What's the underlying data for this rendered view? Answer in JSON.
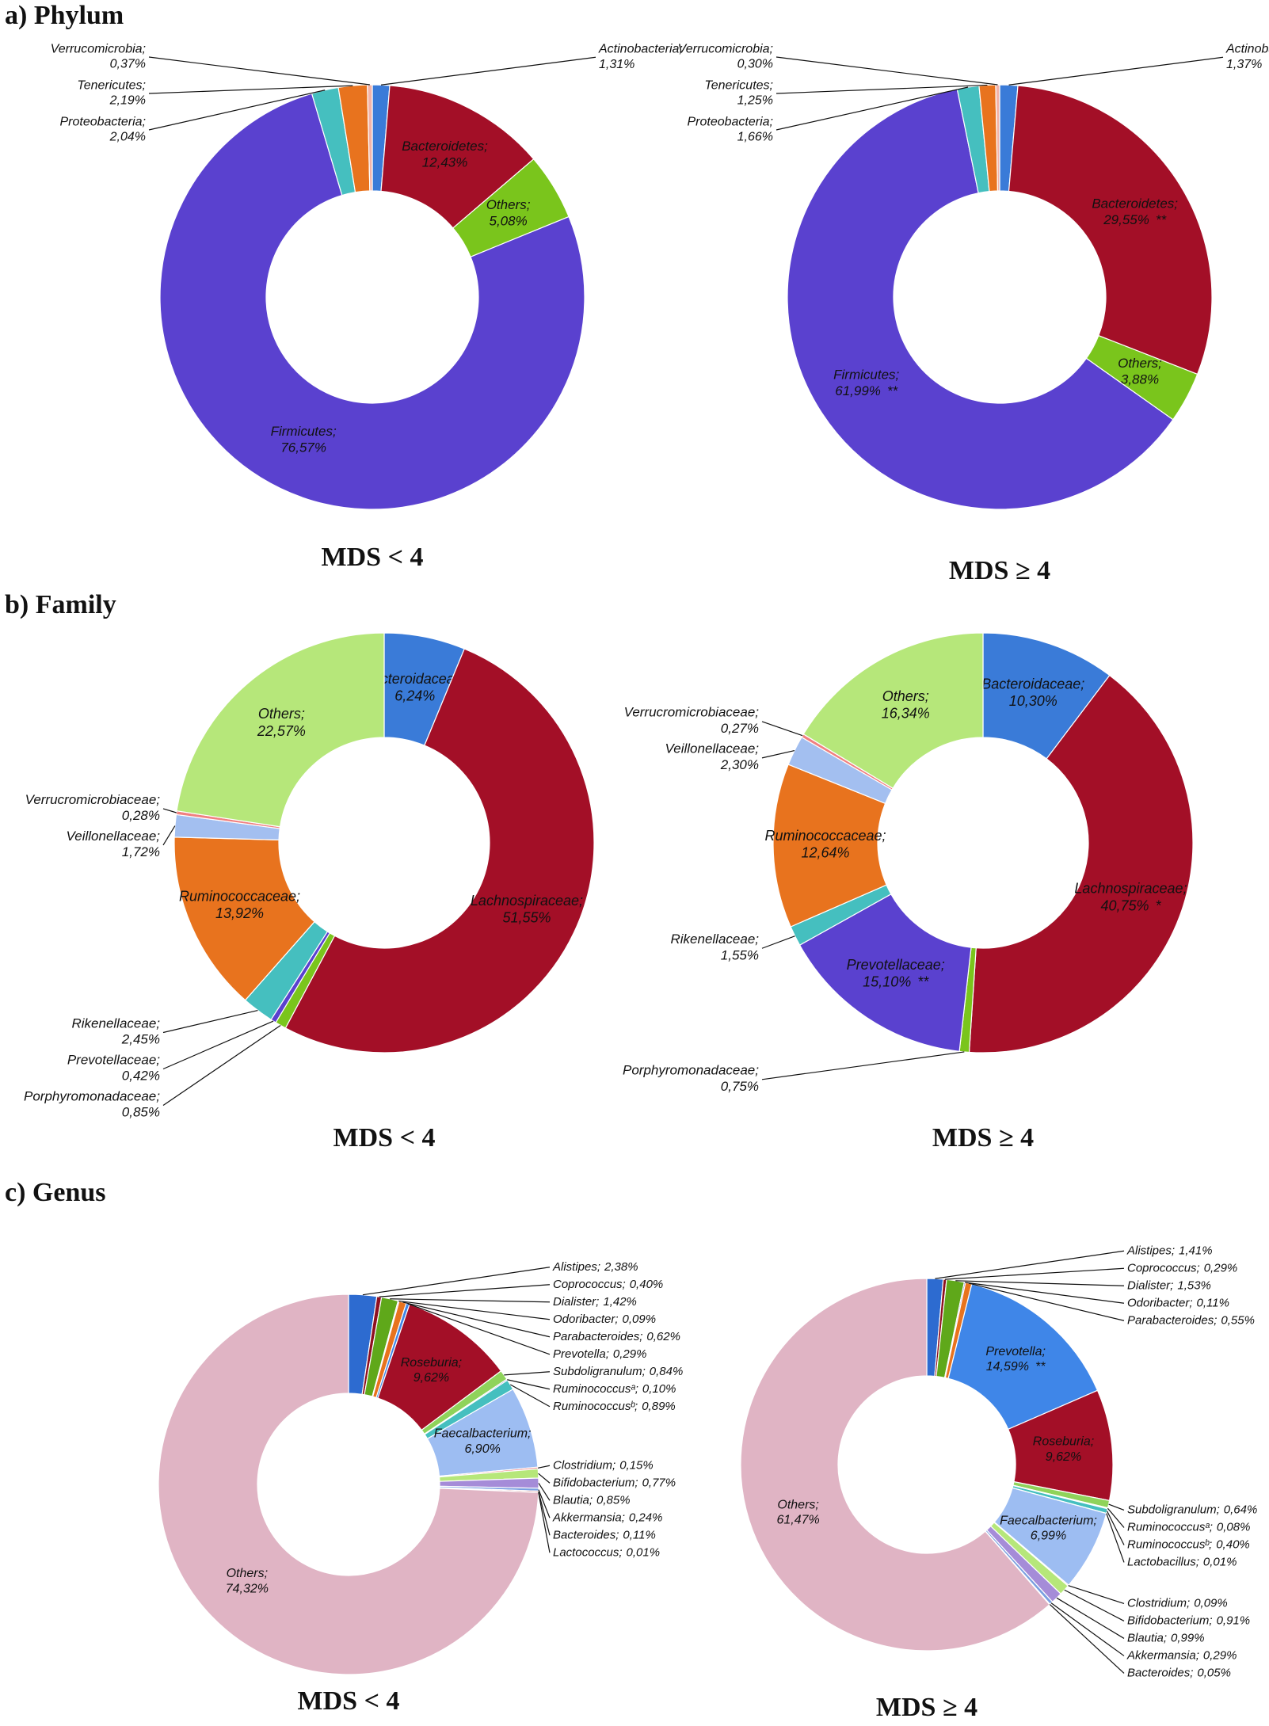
{
  "sections": [
    "a) Phylum",
    "b) Family",
    "c) Genus"
  ],
  "chart_data": [
    {
      "type": "pie",
      "subtitle": "MDS < 4",
      "categories": [
        "Actinobacteria;",
        "Bacteroidetes;",
        "Others;",
        "Firmicutes;",
        "Proteobacteria;",
        "Tenericutes;",
        "Verrucomicrobia;"
      ],
      "values": [
        1.31,
        12.43,
        5.08,
        76.57,
        2.04,
        2.19,
        0.37
      ],
      "value_labels": [
        "1,31%",
        "12,43%",
        "5,08%",
        "76,57%",
        "2,04%",
        "2,19%",
        "0,37%"
      ],
      "colors": [
        "#3a7bd8",
        "#a30f27",
        "#7ac51c",
        "#5a41cf",
        "#45bfbf",
        "#e8731e",
        "#f3b3a8"
      ]
    },
    {
      "type": "pie",
      "subtitle": "MDS ≥ 4",
      "categories": [
        "Actinobacteria;",
        "Bacteroidetes;",
        "Others;",
        "Firmicutes;",
        "Proteobacteria;",
        "Tenericutes;",
        "Verrucomicrobia;"
      ],
      "values": [
        1.37,
        29.55,
        3.88,
        61.99,
        1.66,
        1.25,
        0.3
      ],
      "value_labels": [
        "1,37%",
        "29,55%",
        "3,88%",
        "61,99%",
        "1,66%",
        "1,25%",
        "0,30%"
      ],
      "significance": [
        null,
        "**",
        null,
        "**",
        null,
        null,
        null
      ],
      "colors": [
        "#3a7bd8",
        "#a30f27",
        "#7ac51c",
        "#5a41cf",
        "#45bfbf",
        "#e8731e",
        "#f3b3a8"
      ]
    },
    {
      "type": "pie",
      "subtitle": "MDS < 4",
      "categories": [
        "Bacteroidaceae;",
        "Lachnospiraceae;",
        "Porphyromonadaceae;",
        "Prevotellaceae;",
        "Rikenellaceae;",
        "Ruminococcaceae;",
        "Veillonellaceae;",
        "Verrucromicrobiaceae;",
        "Others;"
      ],
      "values": [
        6.24,
        51.55,
        0.85,
        0.42,
        2.45,
        13.92,
        1.72,
        0.28,
        22.57
      ],
      "value_labels": [
        "6,24%",
        "51,55%",
        "0,85%",
        "0,42%",
        "2,45%",
        "13,92%",
        "1,72%",
        "0,28%",
        "22,57%"
      ],
      "colors": [
        "#3a7bd8",
        "#a30f27",
        "#7ac51c",
        "#5a41cf",
        "#45bfbf",
        "#e8731e",
        "#a3bff0",
        "#f08080",
        "#b6e77a"
      ]
    },
    {
      "type": "pie",
      "subtitle": "MDS ≥ 4",
      "categories": [
        "Bacteroidaceae;",
        "Lachnospiraceae;",
        "Porphyromonadaceae;",
        "Prevotellaceae;",
        "Rikenellaceae;",
        "Ruminococcaceae;",
        "Veillonellaceae;",
        "Verrucromicrobiaceae;",
        "Others;"
      ],
      "values": [
        10.3,
        40.75,
        0.75,
        15.1,
        1.55,
        12.64,
        2.3,
        0.27,
        16.34
      ],
      "value_labels": [
        "10,30%",
        "40,75%",
        "0,75%",
        "15,10%",
        "1,55%",
        "12,64%",
        "2,30%",
        "0,27%",
        "16,34%"
      ],
      "significance": [
        null,
        "*",
        null,
        "**",
        null,
        null,
        null,
        null,
        null
      ],
      "colors": [
        "#3a7bd8",
        "#a30f27",
        "#7ac51c",
        "#5a41cf",
        "#45bfbf",
        "#e8731e",
        "#a3bff0",
        "#f08080",
        "#b6e77a"
      ]
    },
    {
      "type": "pie",
      "subtitle": "MDS < 4",
      "categories": [
        "Alistipes;",
        "Coprococcus;",
        "Dialister;",
        "Odoribacter;",
        "Parabacteroides;",
        "Prevotella;",
        "Roseburia;",
        "Subdoligranulum;",
        "Ruminococcusᵃ;",
        "Ruminococcusᵇ;",
        "Faecalbacterium;",
        "Clostridium;",
        "Bifidobacterium;",
        "Blautia;",
        "Akkermansia;",
        "Bacteroides;",
        "Lactococcus;",
        "Others;"
      ],
      "values": [
        2.38,
        0.4,
        1.42,
        0.09,
        0.62,
        0.29,
        9.62,
        0.84,
        0.1,
        0.89,
        6.9,
        0.15,
        0.77,
        0.85,
        0.24,
        0.11,
        0.01,
        74.32
      ],
      "value_labels": [
        "2,38%",
        "0,40%",
        "1,42%",
        "0,09%",
        "0,62%",
        "0,29%",
        "9,62%",
        "0,84%",
        "0,10%",
        "0,89%",
        "6,90%",
        "0,15%",
        "0,77%",
        "0,85%",
        "0,24%",
        "0,11%",
        "0,01%",
        "74,32%"
      ],
      "colors": [
        "#2d6bd0",
        "#8e1020",
        "#5fa81a",
        "#5a41cf",
        "#e8731e",
        "#3f86e8",
        "#a30f27",
        "#8fd35a",
        "#6a4fd8",
        "#45bfbf",
        "#9dbdf2",
        "#f08a8a",
        "#b6e77a",
        "#a58cd8",
        "#7a9fe0",
        "#c05050",
        "#8b5a2b",
        "#e0b4c4"
      ]
    },
    {
      "type": "pie",
      "subtitle": "MDS ≥ 4",
      "categories": [
        "Alistipes;",
        "Coprococcus;",
        "Dialister;",
        "Odoribacter;",
        "Parabacteroides;",
        "Prevotella;",
        "Roseburia;",
        "Subdoligranulum;",
        "Ruminococcusᵃ;",
        "Ruminococcusᵇ;",
        "Lactobacillus;",
        "Faecalbacterium;",
        "Clostridium;",
        "Bifidobacterium;",
        "Blautia;",
        "Akkermansia;",
        "Bacteroides;",
        "Others;"
      ],
      "values": [
        1.41,
        0.29,
        1.53,
        0.11,
        0.55,
        14.59,
        9.62,
        0.64,
        0.08,
        0.4,
        0.01,
        6.99,
        0.09,
        0.91,
        0.99,
        0.29,
        0.05,
        61.47
      ],
      "value_labels": [
        "1,41%",
        "0,29%",
        "1,53%",
        "0,11%",
        "0,55%",
        "14,59%",
        "9,62%",
        "0,64%",
        "0,08%",
        "0,40%",
        "0,01%",
        "6,99%",
        "0,09%",
        "0,91%",
        "0,99%",
        "0,29%",
        "0,05%",
        "61,47%"
      ],
      "significance": [
        null,
        null,
        null,
        null,
        null,
        "**",
        null,
        null,
        null,
        null,
        null,
        null,
        null,
        null,
        null,
        null,
        null,
        null
      ],
      "colors": [
        "#2d6bd0",
        "#8e1020",
        "#5fa81a",
        "#5a41cf",
        "#e8731e",
        "#3f86e8",
        "#a30f27",
        "#8fd35a",
        "#6a4fd8",
        "#45bfbf",
        "#d9a441",
        "#9dbdf2",
        "#f08a8a",
        "#b6e77a",
        "#a58cd8",
        "#7a9fe0",
        "#c05050",
        "#e0b4c4"
      ]
    }
  ]
}
